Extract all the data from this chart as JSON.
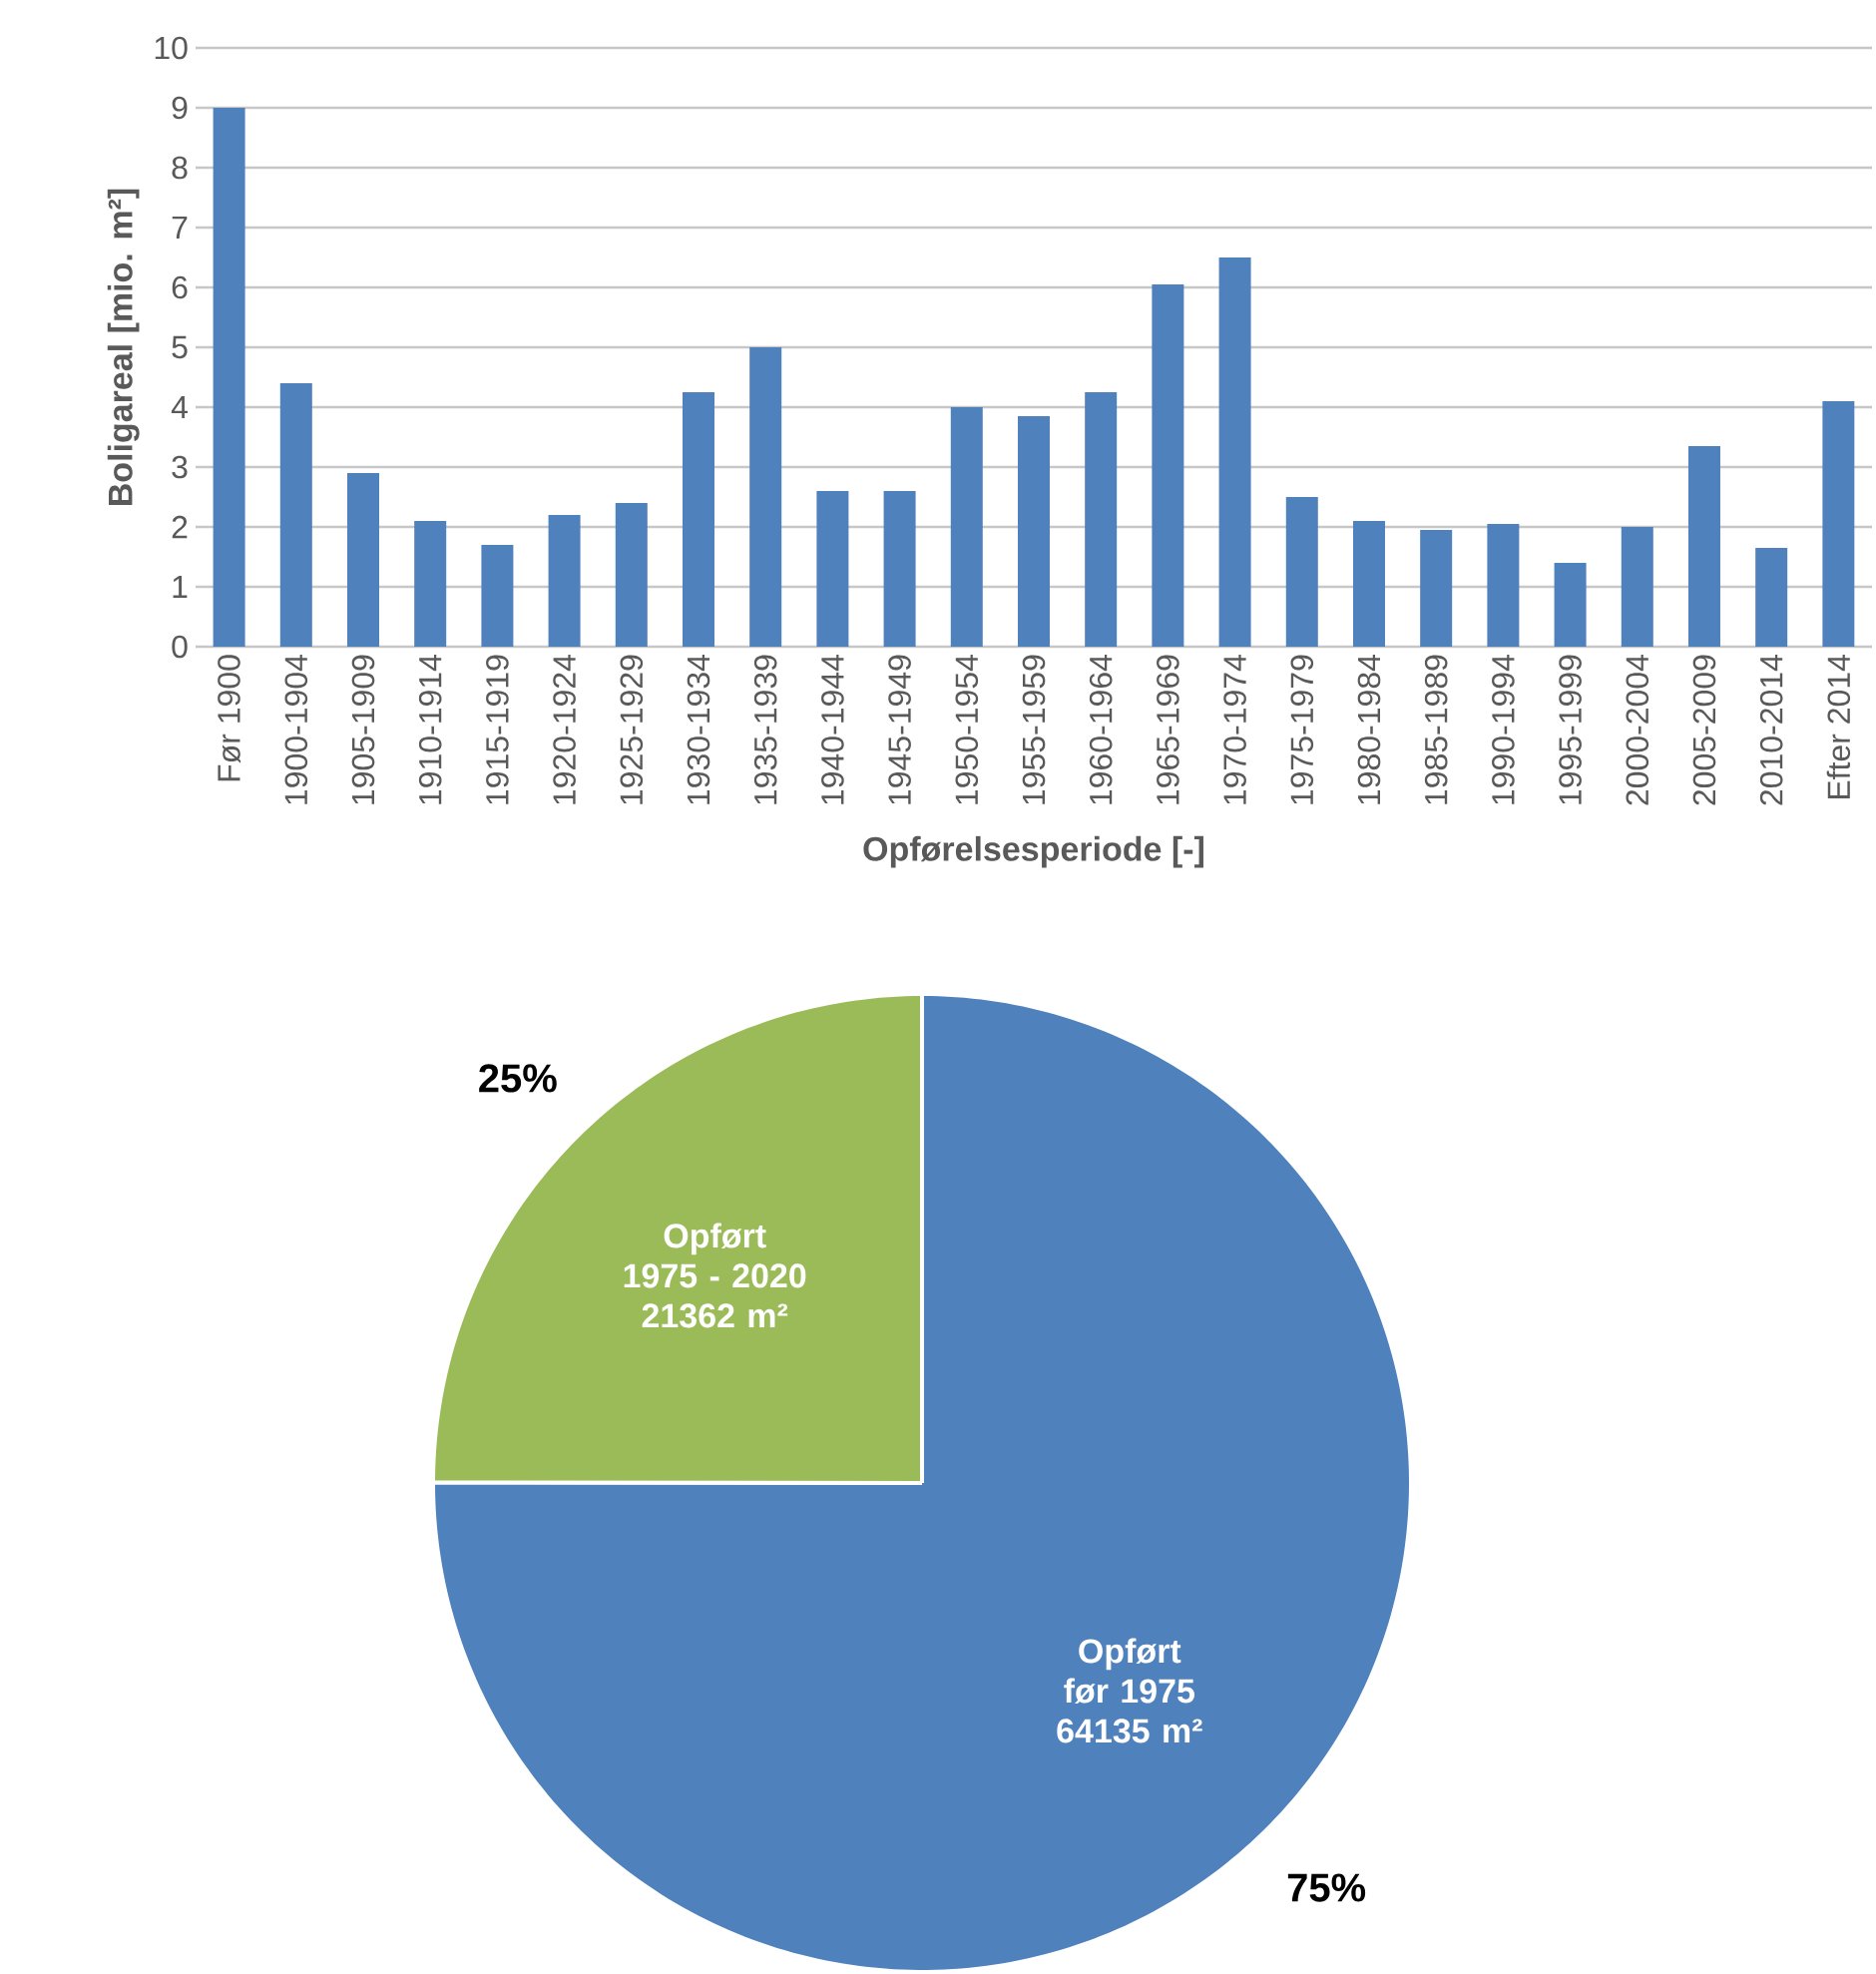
{
  "chart_data": [
    {
      "type": "bar",
      "xlabel": "Opførelsesperiode [-]",
      "ylabel": "Boligareal [mio. m²]",
      "categories": [
        "Før 1900",
        "1900-1904",
        "1905-1909",
        "1910-1914",
        "1915-1919",
        "1920-1924",
        "1925-1929",
        "1930-1934",
        "1935-1939",
        "1940-1944",
        "1945-1949",
        "1950-1954",
        "1955-1959",
        "1960-1964",
        "1965-1969",
        "1970-1974",
        "1975-1979",
        "1980-1984",
        "1985-1989",
        "1990-1994",
        "1995-1999",
        "2000-2004",
        "2005-2009",
        "2010-2014",
        "Efter 2014"
      ],
      "values": [
        9.0,
        4.4,
        2.9,
        2.1,
        1.7,
        2.2,
        2.4,
        4.25,
        5.0,
        2.6,
        2.6,
        4.0,
        3.85,
        4.25,
        6.05,
        6.5,
        2.5,
        2.1,
        1.95,
        2.05,
        1.4,
        2.0,
        3.35,
        1.65,
        4.1
      ],
      "color": "#4f81bd",
      "ylim": [
        0,
        10
      ],
      "yticks": [
        0,
        1,
        2,
        3,
        4,
        5,
        6,
        7,
        8,
        9,
        10
      ],
      "grid": "y"
    },
    {
      "type": "pie",
      "categories": [
        "Opført før 1975",
        "Opført 1975 - 2020"
      ],
      "values": [
        64135,
        21362
      ],
      "value_labels": [
        "64135 m²",
        "21362 m²"
      ],
      "colors": [
        "#4f81bd",
        "#9bbb59"
      ],
      "annotations": [
        "75%",
        "25%"
      ]
    }
  ]
}
